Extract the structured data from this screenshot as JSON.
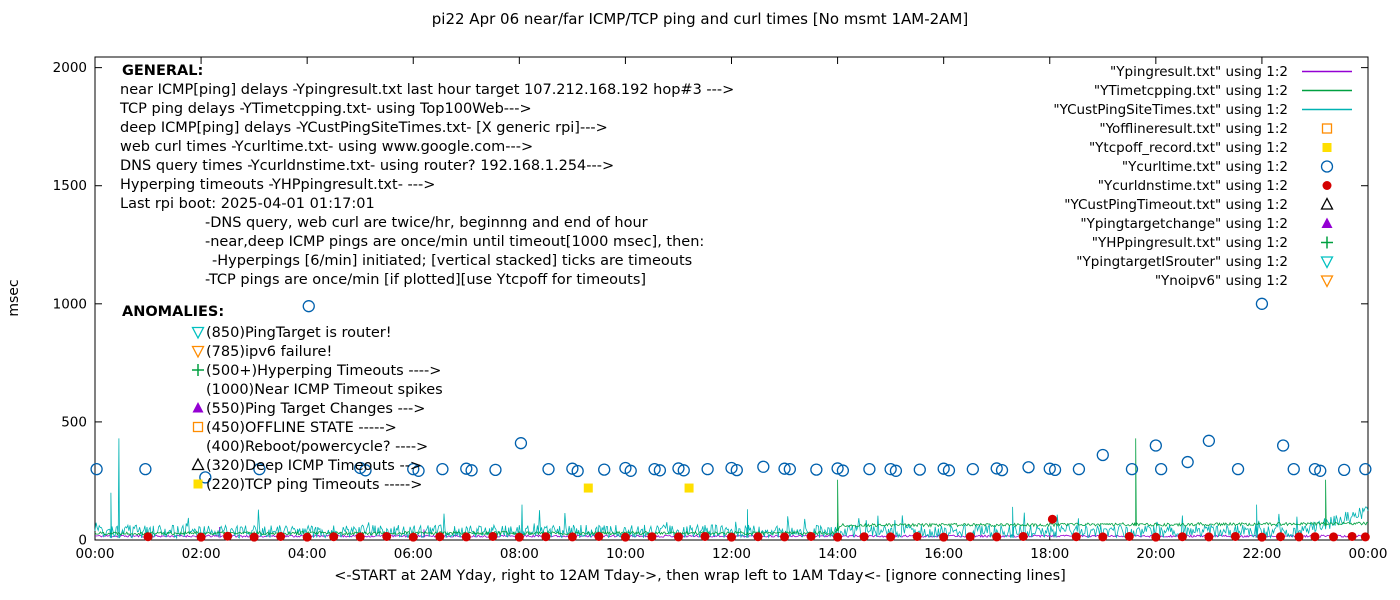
{
  "chart_data": {
    "type": "line+scatter",
    "title": "pi22 Apr 06  near/far ICMP/TCP ping and curl times [No msmt 1AM-2AM]",
    "xlabel": "<-START at 2AM Yday, right to 12AM Tday->, then wrap left to 1AM Tday<- [ignore connecting lines]",
    "ylabel": "msec",
    "xlim": [
      0,
      24
    ],
    "ylim": [
      0,
      2045
    ],
    "grid": false,
    "legend_position": "top-right-inside",
    "x_ticks": [
      {
        "v": 0,
        "label": "00:00"
      },
      {
        "v": 2,
        "label": "02:00"
      },
      {
        "v": 4,
        "label": "04:00"
      },
      {
        "v": 6,
        "label": "06:00"
      },
      {
        "v": 8,
        "label": "08:00"
      },
      {
        "v": 10,
        "label": "10:00"
      },
      {
        "v": 12,
        "label": "12:00"
      },
      {
        "v": 14,
        "label": "14:00"
      },
      {
        "v": 16,
        "label": "16:00"
      },
      {
        "v": 18,
        "label": "18:00"
      },
      {
        "v": 20,
        "label": "20:00"
      },
      {
        "v": 22,
        "label": "22:00"
      },
      {
        "v": 24,
        "label": "00:00"
      }
    ],
    "y_ticks": [
      {
        "v": 0,
        "label": "0"
      },
      {
        "v": 500,
        "label": "500"
      },
      {
        "v": 1000,
        "label": "1000"
      },
      {
        "v": 1500,
        "label": "1500"
      },
      {
        "v": 2000,
        "label": "2000"
      }
    ],
    "lines": [
      {
        "name": "Ypingresult.txt",
        "color": "#9400d3",
        "seed": 11,
        "noise": 9,
        "keypoints": [
          [
            0,
            12
          ],
          [
            24,
            12
          ]
        ],
        "spikes": [
          [
            2.35,
            55
          ],
          [
            6.2,
            45
          ]
        ]
      },
      {
        "name": "YCustPingSiteTimes.txt",
        "color": "#00b2b2",
        "seed": 33,
        "noise": 55,
        "rare_p": 0.03,
        "rare_amp": 70,
        "keypoints": [
          [
            0,
            8
          ],
          [
            22.8,
            10
          ],
          [
            24,
            95
          ]
        ],
        "spikes": [
          [
            0.3,
            200
          ],
          [
            0.45,
            430
          ],
          [
            8.05,
            150
          ],
          [
            12.3,
            130
          ],
          [
            17.3,
            140
          ],
          [
            21.9,
            150
          ]
        ]
      },
      {
        "name": "YTimetcpping.txt",
        "color": "#00a040",
        "seed": 22,
        "noise": 14,
        "keypoints": [
          [
            0,
            22
          ],
          [
            13.95,
            22
          ],
          [
            14.05,
            55
          ],
          [
            24,
            62
          ]
        ],
        "spikes": [
          [
            14.0,
            255
          ],
          [
            19.62,
            430
          ],
          [
            23.2,
            255
          ]
        ]
      }
    ],
    "scatter": [
      {
        "name": "Ytcpoff_record.txt",
        "marker": "square-filled",
        "color": "#ffdf00",
        "points": [
          [
            9.3,
            220
          ],
          [
            11.2,
            220
          ]
        ]
      },
      {
        "name": "Ycurltime.txt",
        "marker": "circle-open",
        "color": "#0060ad",
        "points": [
          [
            0.03,
            300
          ],
          [
            0.95,
            300
          ],
          [
            2.08,
            265
          ],
          [
            3.1,
            300
          ],
          [
            4.03,
            990
          ],
          [
            5.0,
            305
          ],
          [
            5.1,
            295
          ],
          [
            6.0,
            300
          ],
          [
            6.1,
            293
          ],
          [
            6.55,
            300
          ],
          [
            7.0,
            302
          ],
          [
            7.1,
            295
          ],
          [
            7.55,
            297
          ],
          [
            8.03,
            410
          ],
          [
            8.55,
            300
          ],
          [
            9.0,
            302
          ],
          [
            9.1,
            292
          ],
          [
            9.6,
            298
          ],
          [
            10.0,
            305
          ],
          [
            10.1,
            293
          ],
          [
            10.55,
            300
          ],
          [
            10.65,
            295
          ],
          [
            11.0,
            303
          ],
          [
            11.1,
            295
          ],
          [
            11.55,
            300
          ],
          [
            12.0,
            305
          ],
          [
            12.1,
            296
          ],
          [
            12.6,
            310
          ],
          [
            13.0,
            302
          ],
          [
            13.1,
            300
          ],
          [
            13.6,
            298
          ],
          [
            14.0,
            303
          ],
          [
            14.1,
            294
          ],
          [
            14.6,
            300
          ],
          [
            15.0,
            300
          ],
          [
            15.1,
            293
          ],
          [
            15.55,
            298
          ],
          [
            16.0,
            302
          ],
          [
            16.1,
            295
          ],
          [
            16.55,
            300
          ],
          [
            17.0,
            303
          ],
          [
            17.1,
            296
          ],
          [
            17.6,
            308
          ],
          [
            18.0,
            302
          ],
          [
            18.1,
            297
          ],
          [
            18.55,
            300
          ],
          [
            19.0,
            360
          ],
          [
            19.55,
            300
          ],
          [
            20.0,
            400
          ],
          [
            20.1,
            300
          ],
          [
            20.6,
            330
          ],
          [
            21.0,
            420
          ],
          [
            21.55,
            300
          ],
          [
            22.0,
            1000
          ],
          [
            22.4,
            400
          ],
          [
            22.6,
            300
          ],
          [
            23.0,
            300
          ],
          [
            23.1,
            293
          ],
          [
            23.55,
            297
          ],
          [
            23.95,
            300
          ]
        ]
      },
      {
        "name": "Ycurldnstime.txt",
        "marker": "circle-filled",
        "color": "#d40000",
        "points": [
          [
            1.0,
            14
          ],
          [
            2.0,
            12
          ],
          [
            2.5,
            16
          ],
          [
            3.0,
            12
          ],
          [
            3.5,
            15
          ],
          [
            4.0,
            12
          ],
          [
            4.5,
            14
          ],
          [
            5.0,
            13
          ],
          [
            5.5,
            15
          ],
          [
            6.0,
            12
          ],
          [
            6.5,
            14
          ],
          [
            7.0,
            13
          ],
          [
            7.5,
            15
          ],
          [
            8.0,
            12
          ],
          [
            8.5,
            14
          ],
          [
            9.0,
            13
          ],
          [
            9.5,
            15
          ],
          [
            10.0,
            12
          ],
          [
            10.5,
            14
          ],
          [
            11.0,
            13
          ],
          [
            11.5,
            15
          ],
          [
            12.0,
            12
          ],
          [
            12.5,
            14
          ],
          [
            13.0,
            13
          ],
          [
            13.5,
            15
          ],
          [
            14.0,
            12
          ],
          [
            14.5,
            14
          ],
          [
            15.0,
            13
          ],
          [
            15.5,
            15
          ],
          [
            16.0,
            12
          ],
          [
            16.5,
            14
          ],
          [
            17.0,
            13
          ],
          [
            17.5,
            15
          ],
          [
            18.05,
            88
          ],
          [
            18.5,
            14
          ],
          [
            19.0,
            13
          ],
          [
            19.5,
            15
          ],
          [
            20.0,
            12
          ],
          [
            20.5,
            14
          ],
          [
            21.0,
            13
          ],
          [
            21.5,
            15
          ],
          [
            22.0,
            12
          ],
          [
            22.35,
            14
          ],
          [
            22.7,
            13
          ],
          [
            23.0,
            14
          ],
          [
            23.35,
            13
          ],
          [
            23.7,
            15
          ],
          [
            23.95,
            13
          ]
        ]
      }
    ],
    "legend": [
      {
        "label": "\"Ypingresult.txt\" using 1:2",
        "marker": "line",
        "color": "#9400d3"
      },
      {
        "label": "\"YTimetcpping.txt\" using 1:2",
        "marker": "line",
        "color": "#00a040"
      },
      {
        "label": "\"YCustPingSiteTimes.txt\" using 1:2",
        "marker": "line",
        "color": "#00b2b2"
      },
      {
        "label": "\"Yofflineresult.txt\" using 1:2",
        "marker": "square-open",
        "color": "#ff8c00"
      },
      {
        "label": "\"Ytcpoff_record.txt\" using 1:2",
        "marker": "square-filled",
        "color": "#ffdf00"
      },
      {
        "label": "\"Ycurltime.txt\" using 1:2",
        "marker": "circle-open",
        "color": "#0060ad"
      },
      {
        "label": "\"Ycurldnstime.txt\" using 1:2",
        "marker": "circle-filled",
        "color": "#d40000"
      },
      {
        "label": "\"YCustPingTimeout.txt\" using 1:2",
        "marker": "triangle-open",
        "color": "#000000"
      },
      {
        "label": "\"Ypingtargetchange\" using 1:2",
        "marker": "triangle-filled",
        "color": "#9400d3"
      },
      {
        "label": "\"YHPpingresult.txt\" using 1:2",
        "marker": "plus",
        "color": "#00a040"
      },
      {
        "label": "\"YpingtargetISrouter\" using 1:2",
        "marker": "triangle-down-open",
        "color": "#00c0c0"
      },
      {
        "label": "\"Ynoipv6\" using 1:2",
        "marker": "triangle-down-open",
        "color": "#ff8c00"
      }
    ]
  },
  "annotations": {
    "general_title": "GENERAL:",
    "general_lines": [
      {
        "indent": 0,
        "text": "near ICMP[ping] delays -Ypingresult.txt last hour target 107.212.168.192 hop#3 --->"
      },
      {
        "indent": 0,
        "text": "TCP ping delays -YTimetcpping.txt- using Top100Web--->"
      },
      {
        "indent": 0,
        "text": "deep ICMP[ping] delays -YCustPingSiteTimes.txt- [X generic rpi]--->"
      },
      {
        "indent": 0,
        "text": "web curl times -Ycurltime.txt- using www.google.com--->"
      },
      {
        "indent": 0,
        "text": "DNS query times -Ycurldnstime.txt- using router? 192.168.1.254--->"
      },
      {
        "indent": 0,
        "text": "Hyperping timeouts -YHPpingresult.txt- --->"
      },
      {
        "indent": 0,
        "text": "Last rpi boot: 2025-04-01 01:17:01"
      },
      {
        "indent": 1,
        "text": "-DNS query, web curl are twice/hr, beginnng and end of hour"
      },
      {
        "indent": 1,
        "text": "-near,deep ICMP pings are once/min until timeout[1000 msec], then:"
      },
      {
        "indent": 2,
        "text": "-Hyperpings [6/min] initiated; [vertical stacked] ticks are timeouts"
      },
      {
        "indent": 1,
        "text": "-TCP pings are once/min [if plotted][use Ytcpoff for timeouts]"
      }
    ],
    "anomalies_title": "ANOMALIES:",
    "anomalies": [
      {
        "marker": "triangle-down-open",
        "color": "#00c0c0",
        "text": "(850)PingTarget is router!"
      },
      {
        "marker": "triangle-down-open",
        "color": "#ff8c00",
        "text": "(785)ipv6 failure!"
      },
      {
        "marker": "plus",
        "color": "#00a040",
        "text": "(500+)Hyperping Timeouts ---->"
      },
      {
        "marker": "none",
        "color": "",
        "text": "(1000)Near ICMP Timeout spikes"
      },
      {
        "marker": "triangle-filled",
        "color": "#9400d3",
        "text": "(550)Ping Target Changes --->"
      },
      {
        "marker": "square-open",
        "color": "#ff8c00",
        "text": "(450)OFFLINE STATE ----->"
      },
      {
        "marker": "none",
        "color": "",
        "text": "(400)Reboot/powercycle? ---->"
      },
      {
        "marker": "triangle-open",
        "color": "#000000",
        "text": "(320)Deep ICMP Timeouts -->"
      },
      {
        "marker": "square-filled",
        "color": "#ffdf00",
        "text": "(220)TCP ping Timeouts ----->"
      }
    ]
  }
}
